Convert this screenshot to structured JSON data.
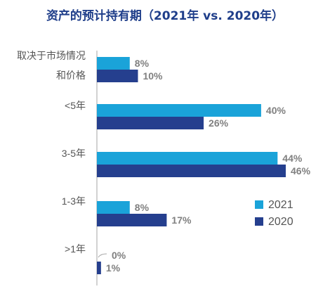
{
  "chart_data": {
    "type": "bar",
    "orientation": "horizontal",
    "title": "资产的预计持有期（2021年 vs. 2020年）",
    "categories": [
      "取决于市场情况和价格",
      "<5年",
      "3-5年",
      "1-3年",
      ">1年"
    ],
    "category_label_lines": [
      [
        "取决于市场情况",
        "和价格"
      ],
      [
        "<5年"
      ],
      [
        "3-5年"
      ],
      [
        "1-3年"
      ],
      [
        ">1年"
      ]
    ],
    "series": [
      {
        "name": "2021",
        "color": "#1aa3d9",
        "values": [
          8,
          40,
          44,
          8,
          0
        ],
        "labels": [
          "8%",
          "40%",
          "44%",
          "8%",
          "0%"
        ]
      },
      {
        "name": "2020",
        "color": "#253f8e",
        "values": [
          10,
          26,
          46,
          17,
          1
        ],
        "labels": [
          "10%",
          "26%",
          "46%",
          "17%",
          "1%"
        ]
      }
    ],
    "value_unit": "%",
    "xlim": [
      0,
      50
    ],
    "grid": false,
    "legend_position": "right"
  }
}
